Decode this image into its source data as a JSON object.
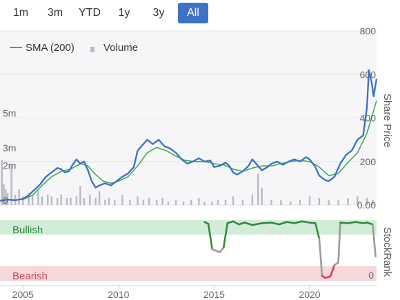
{
  "range_buttons": [
    {
      "label": "1m",
      "active": false
    },
    {
      "label": "3m",
      "active": false
    },
    {
      "label": "YTD",
      "active": false
    },
    {
      "label": "1y",
      "active": false
    },
    {
      "label": "3y",
      "active": false
    },
    {
      "label": "All",
      "active": true
    }
  ],
  "legend": {
    "sma_label": "SMA (200)",
    "volume_label": "Volume"
  },
  "colors": {
    "price": "#3f72c5",
    "sma": "#3fae46",
    "volume": "#b9b9c0",
    "bull_band": "#d3ecd8",
    "bear_band": "#f6d7da",
    "rank_bull": "#2e8b3a",
    "rank_neutral": "#9a9a9a",
    "rank_bear": "#d0405a",
    "active_button": "#3f72c5"
  },
  "chart_data": {
    "type": "line",
    "x_axis": {
      "ticks": [
        "2005",
        "2010",
        "2015",
        "2020"
      ],
      "range": [
        2003.8,
        2023.5
      ]
    },
    "price_axis": {
      "title": "Share Price",
      "ticks": [
        "0.00",
        "200",
        "400",
        "600",
        "800"
      ],
      "range": [
        0,
        800
      ]
    },
    "volume_axis": {
      "ticks": [
        "0",
        "2m",
        "3m",
        "5m"
      ],
      "range": [
        0,
        10
      ]
    },
    "rank_axis": {
      "title": "StockRank",
      "ticks": [
        "0"
      ],
      "band_labels": {
        "high": "Bullish",
        "low": "Bearish"
      }
    },
    "series": [
      {
        "name": "Share Price",
        "kind": "price",
        "points": [
          [
            2003.8,
            20
          ],
          [
            2004.2,
            25
          ],
          [
            2004.6,
            22
          ],
          [
            2005.0,
            28
          ],
          [
            2005.3,
            45
          ],
          [
            2005.6,
            70
          ],
          [
            2005.9,
            95
          ],
          [
            2006.2,
            130
          ],
          [
            2006.5,
            150
          ],
          [
            2006.8,
            170
          ],
          [
            2007.0,
            165
          ],
          [
            2007.2,
            150
          ],
          [
            2007.4,
            155
          ],
          [
            2007.6,
            185
          ],
          [
            2007.8,
            210
          ],
          [
            2008.0,
            190
          ],
          [
            2008.2,
            200
          ],
          [
            2008.4,
            160
          ],
          [
            2008.6,
            110
          ],
          [
            2008.8,
            80
          ],
          [
            2009.0,
            90
          ],
          [
            2009.3,
            100
          ],
          [
            2009.6,
            90
          ],
          [
            2009.9,
            110
          ],
          [
            2010.2,
            130
          ],
          [
            2010.5,
            145
          ],
          [
            2010.8,
            175
          ],
          [
            2011.0,
            250
          ],
          [
            2011.2,
            270
          ],
          [
            2011.5,
            300
          ],
          [
            2011.8,
            280
          ],
          [
            2012.1,
            300
          ],
          [
            2012.4,
            270
          ],
          [
            2012.7,
            260
          ],
          [
            2013.0,
            240
          ],
          [
            2013.3,
            210
          ],
          [
            2013.6,
            190
          ],
          [
            2013.9,
            200
          ],
          [
            2014.2,
            215
          ],
          [
            2014.5,
            200
          ],
          [
            2014.8,
            205
          ],
          [
            2015.0,
            175
          ],
          [
            2015.3,
            180
          ],
          [
            2015.6,
            195
          ],
          [
            2015.8,
            180
          ],
          [
            2016.0,
            150
          ],
          [
            2016.2,
            140
          ],
          [
            2016.5,
            155
          ],
          [
            2016.8,
            180
          ],
          [
            2017.0,
            210
          ],
          [
            2017.2,
            190
          ],
          [
            2017.5,
            160
          ],
          [
            2017.8,
            175
          ],
          [
            2018.0,
            190
          ],
          [
            2018.3,
            200
          ],
          [
            2018.6,
            185
          ],
          [
            2018.9,
            200
          ],
          [
            2019.2,
            210
          ],
          [
            2019.5,
            200
          ],
          [
            2019.8,
            220
          ],
          [
            2020.0,
            210
          ],
          [
            2020.3,
            175
          ],
          [
            2020.5,
            135
          ],
          [
            2020.8,
            115
          ],
          [
            2021.0,
            110
          ],
          [
            2021.3,
            130
          ],
          [
            2021.6,
            190
          ],
          [
            2021.9,
            230
          ],
          [
            2022.2,
            250
          ],
          [
            2022.5,
            300
          ],
          [
            2022.8,
            320
          ],
          [
            2023.0,
            450
          ],
          [
            2023.1,
            620
          ],
          [
            2023.25,
            560
          ],
          [
            2023.35,
            500
          ],
          [
            2023.5,
            580
          ]
        ]
      },
      {
        "name": "SMA (200)",
        "kind": "sma",
        "points": [
          [
            2004.0,
            25
          ],
          [
            2004.6,
            24
          ],
          [
            2005.0,
            26
          ],
          [
            2005.5,
            45
          ],
          [
            2006.0,
            90
          ],
          [
            2006.5,
            130
          ],
          [
            2007.0,
            155
          ],
          [
            2007.5,
            165
          ],
          [
            2008.0,
            190
          ],
          [
            2008.4,
            180
          ],
          [
            2008.8,
            140
          ],
          [
            2009.2,
            110
          ],
          [
            2009.6,
            100
          ],
          [
            2010.0,
            110
          ],
          [
            2010.5,
            130
          ],
          [
            2011.0,
            180
          ],
          [
            2011.5,
            240
          ],
          [
            2012.0,
            265
          ],
          [
            2012.5,
            250
          ],
          [
            2013.0,
            225
          ],
          [
            2013.5,
            205
          ],
          [
            2014.0,
            200
          ],
          [
            2014.5,
            200
          ],
          [
            2015.0,
            190
          ],
          [
            2015.5,
            185
          ],
          [
            2016.0,
            165
          ],
          [
            2016.5,
            155
          ],
          [
            2017.0,
            170
          ],
          [
            2017.5,
            180
          ],
          [
            2018.0,
            180
          ],
          [
            2018.5,
            190
          ],
          [
            2019.0,
            200
          ],
          [
            2019.5,
            205
          ],
          [
            2020.0,
            200
          ],
          [
            2020.5,
            175
          ],
          [
            2021.0,
            135
          ],
          [
            2021.5,
            145
          ],
          [
            2022.0,
            195
          ],
          [
            2022.5,
            240
          ],
          [
            2023.0,
            330
          ],
          [
            2023.3,
            420
          ],
          [
            2023.5,
            480
          ]
        ]
      },
      {
        "name": "Volume",
        "kind": "volume",
        "x": [
          2003.9,
          2004.0,
          2004.1,
          2004.2,
          2004.4,
          2004.6,
          2004.8,
          2005.0,
          2005.3,
          2005.5,
          2005.8,
          2006.0,
          2006.3,
          2006.5,
          2006.8,
          2007.0,
          2007.3,
          2007.5,
          2007.8,
          2008.0,
          2008.2,
          2008.5,
          2008.8,
          2009.0,
          2009.3,
          2009.5,
          2009.8,
          2010.2,
          2010.6,
          2011.0,
          2011.3,
          2011.6,
          2012.0,
          2012.3,
          2012.6,
          2013.0,
          2013.4,
          2013.8,
          2014.2,
          2014.5,
          2014.9,
          2015.2,
          2015.6,
          2016.0,
          2016.5,
          2017.0,
          2017.3,
          2017.5,
          2018.0,
          2018.5,
          2019.0,
          2019.5,
          2020.0,
          2020.5,
          2021.0,
          2021.5,
          2022.0,
          2022.5,
          2023.0,
          2023.3
        ],
        "values": [
          2.6,
          1.2,
          0.9,
          0.7,
          2.3,
          0.6,
          0.9,
          0.5,
          0.7,
          0.6,
          0.9,
          0.5,
          0.6,
          0.5,
          0.4,
          0.6,
          0.4,
          0.4,
          0.5,
          1.1,
          0.4,
          0.6,
          0.4,
          0.8,
          0.3,
          0.4,
          0.3,
          0.6,
          0.3,
          0.5,
          0.3,
          0.4,
          0.3,
          0.4,
          0.2,
          0.3,
          0.2,
          0.3,
          0.4,
          0.2,
          0.2,
          0.3,
          0.3,
          0.5,
          0.3,
          0.6,
          1.8,
          1.0,
          0.3,
          0.3,
          0.2,
          0.3,
          0.5,
          0.4,
          0.3,
          0.3,
          0.4,
          0.5,
          0.4,
          0.3
        ]
      },
      {
        "name": "StockRank",
        "kind": "rank",
        "range": [
          0,
          100
        ],
        "points": [
          [
            2014.5,
            97
          ],
          [
            2014.7,
            94
          ],
          [
            2014.9,
            52
          ],
          [
            2015.3,
            47
          ],
          [
            2015.5,
            55
          ],
          [
            2015.7,
            95
          ],
          [
            2016.0,
            98
          ],
          [
            2016.3,
            93
          ],
          [
            2016.6,
            96
          ],
          [
            2017.0,
            92
          ],
          [
            2017.5,
            95
          ],
          [
            2018.0,
            96
          ],
          [
            2018.4,
            93
          ],
          [
            2018.8,
            97
          ],
          [
            2019.2,
            95
          ],
          [
            2019.6,
            98
          ],
          [
            2020.0,
            96
          ],
          [
            2020.3,
            95
          ],
          [
            2020.5,
            70
          ],
          [
            2020.65,
            8
          ],
          [
            2020.8,
            5
          ],
          [
            2021.0,
            6
          ],
          [
            2021.1,
            8
          ],
          [
            2021.3,
            26
          ],
          [
            2021.5,
            30
          ],
          [
            2021.6,
            96
          ],
          [
            2022.0,
            95
          ],
          [
            2022.4,
            97
          ],
          [
            2022.8,
            95
          ],
          [
            2023.0,
            96
          ],
          [
            2023.3,
            93
          ],
          [
            2023.45,
            40
          ]
        ],
        "bull_threshold": 70,
        "bear_threshold": 20
      }
    ]
  }
}
